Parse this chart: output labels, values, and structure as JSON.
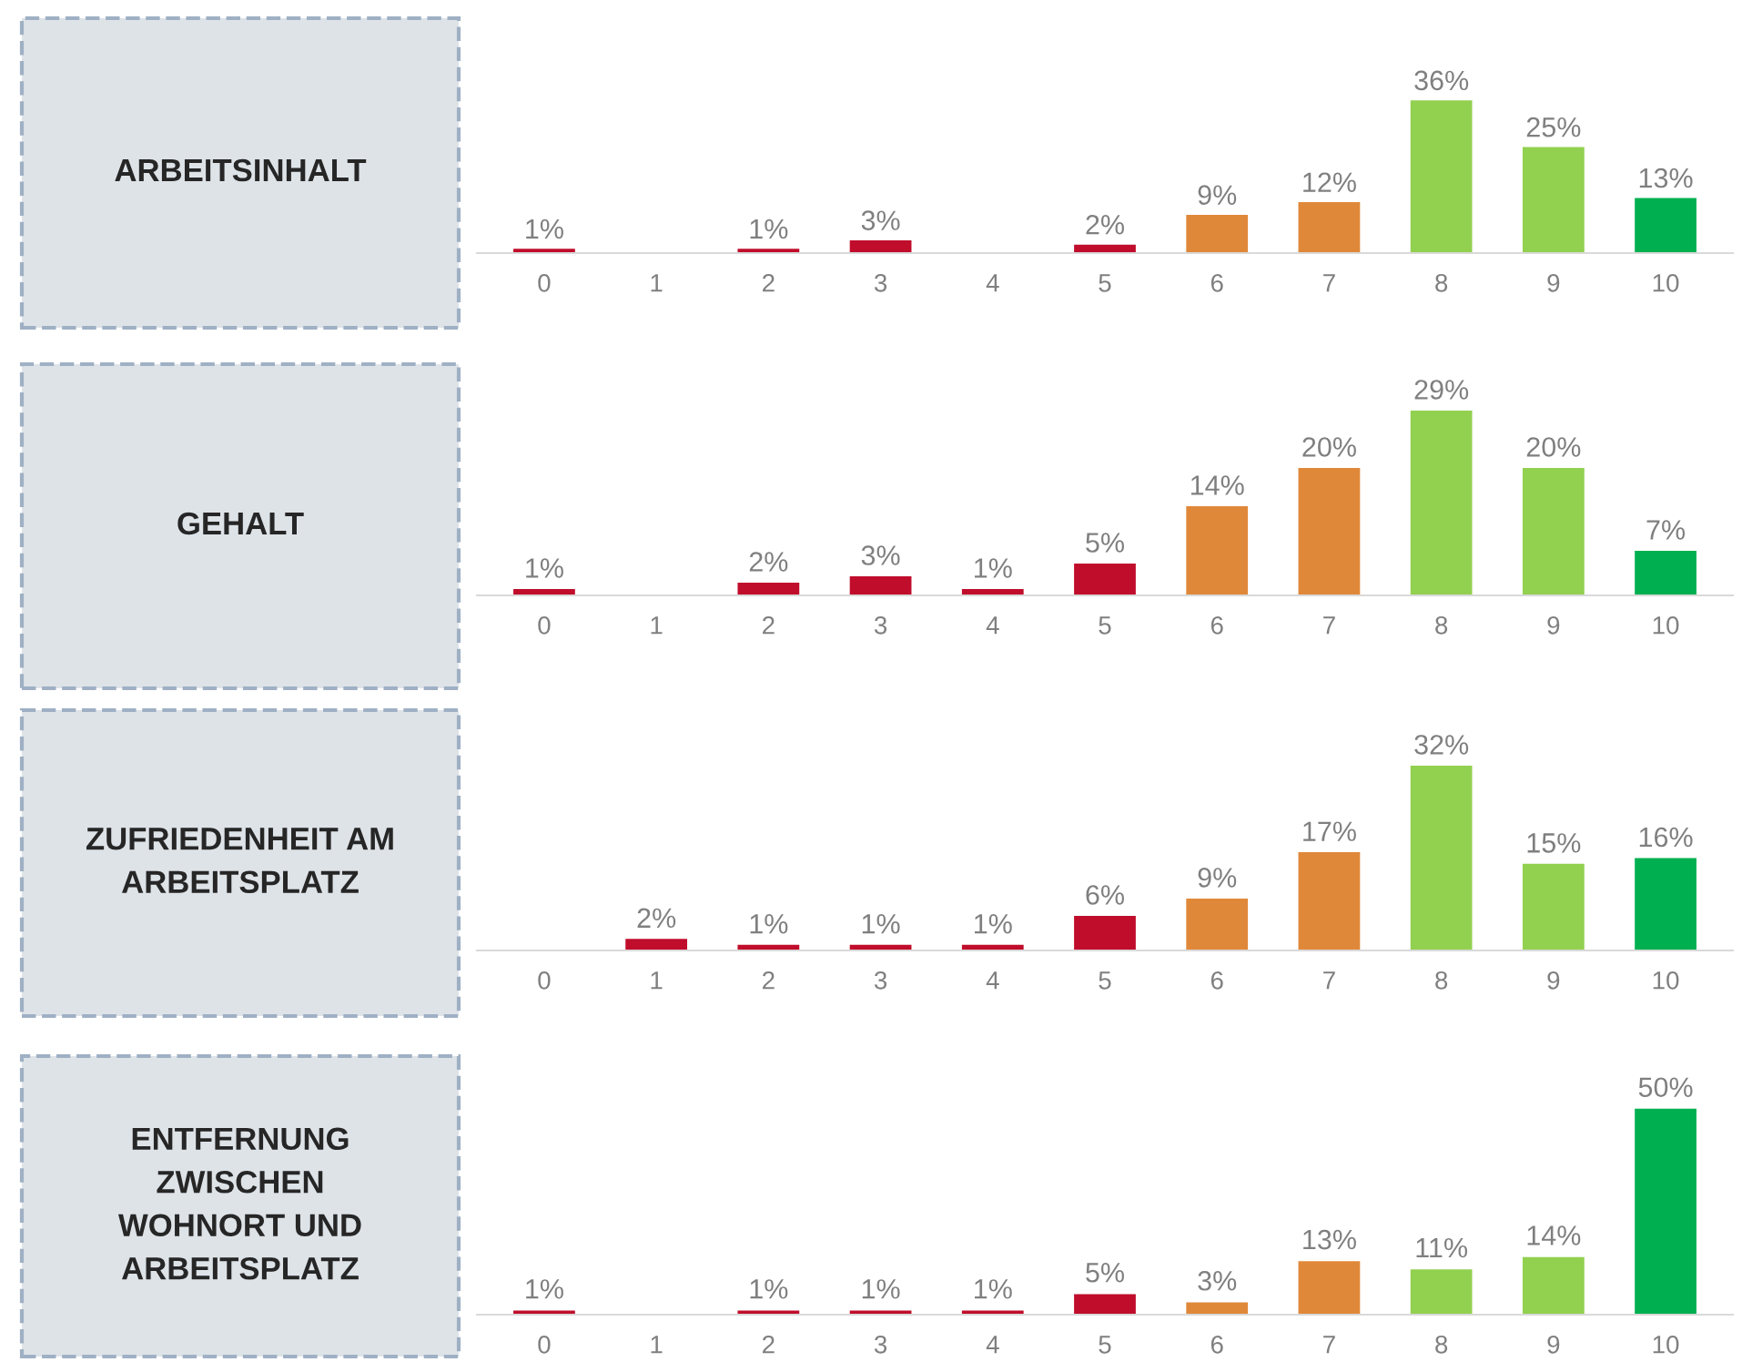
{
  "chart_data": [
    {
      "type": "bar",
      "title": "ARBEITSINHALT",
      "categories": [
        "0",
        "1",
        "2",
        "3",
        "4",
        "5",
        "6",
        "7",
        "8",
        "9",
        "10"
      ],
      "values": [
        1,
        null,
        1,
        3,
        null,
        2,
        9,
        12,
        36,
        25,
        13
      ],
      "value_labels": [
        "1%",
        null,
        "1%",
        "3%",
        null,
        "2%",
        "9%",
        "12%",
        "36%",
        "25%",
        "13%"
      ],
      "colors": [
        "#c00d2b",
        "#c00d2b",
        "#c00d2b",
        "#c00d2b",
        "#c00d2b",
        "#c00d2b",
        "#e0883a",
        "#e0883a",
        "#92d050",
        "#92d050",
        "#00b050"
      ]
    },
    {
      "type": "bar",
      "title": "GEHALT",
      "categories": [
        "0",
        "1",
        "2",
        "3",
        "4",
        "5",
        "6",
        "7",
        "8",
        "9",
        "10"
      ],
      "values": [
        1,
        null,
        2,
        3,
        1,
        5,
        14,
        20,
        29,
        20,
        7
      ],
      "value_labels": [
        "1%",
        null,
        "2%",
        "3%",
        "1%",
        "5%",
        "14%",
        "20%",
        "29%",
        "20%",
        "7%"
      ],
      "colors": [
        "#c00d2b",
        "#c00d2b",
        "#c00d2b",
        "#c00d2b",
        "#c00d2b",
        "#c00d2b",
        "#e0883a",
        "#e0883a",
        "#92d050",
        "#92d050",
        "#00b050"
      ]
    },
    {
      "type": "bar",
      "title": "ZUFRIEDENHEIT AM\nARBEITSPLATZ",
      "categories": [
        "0",
        "1",
        "2",
        "3",
        "4",
        "5",
        "6",
        "7",
        "8",
        "9",
        "10"
      ],
      "values": [
        null,
        2,
        1,
        1,
        1,
        6,
        9,
        17,
        32,
        15,
        16
      ],
      "value_labels": [
        null,
        "2%",
        "1%",
        "1%",
        "1%",
        "6%",
        "9%",
        "17%",
        "32%",
        "15%",
        "16%"
      ],
      "colors": [
        "#c00d2b",
        "#c00d2b",
        "#c00d2b",
        "#c00d2b",
        "#c00d2b",
        "#c00d2b",
        "#e0883a",
        "#e0883a",
        "#92d050",
        "#92d050",
        "#00b050"
      ]
    },
    {
      "type": "bar",
      "title": "ENTFERNUNG\nZWISCHEN\nWOHNORT UND\nARBEITSPLATZ",
      "categories": [
        "0",
        "1",
        "2",
        "3",
        "4",
        "5",
        "6",
        "7",
        "8",
        "9",
        "10"
      ],
      "values": [
        1,
        null,
        1,
        1,
        1,
        5,
        3,
        13,
        11,
        14,
        50
      ],
      "value_labels": [
        "1%",
        null,
        "1%",
        "1%",
        "1%",
        "5%",
        "3%",
        "13%",
        "11%",
        "14%",
        "50%"
      ],
      "colors": [
        "#c00d2b",
        "#c00d2b",
        "#c00d2b",
        "#c00d2b",
        "#c00d2b",
        "#c00d2b",
        "#e0883a",
        "#e0883a",
        "#92d050",
        "#92d050",
        "#00b050"
      ]
    }
  ]
}
